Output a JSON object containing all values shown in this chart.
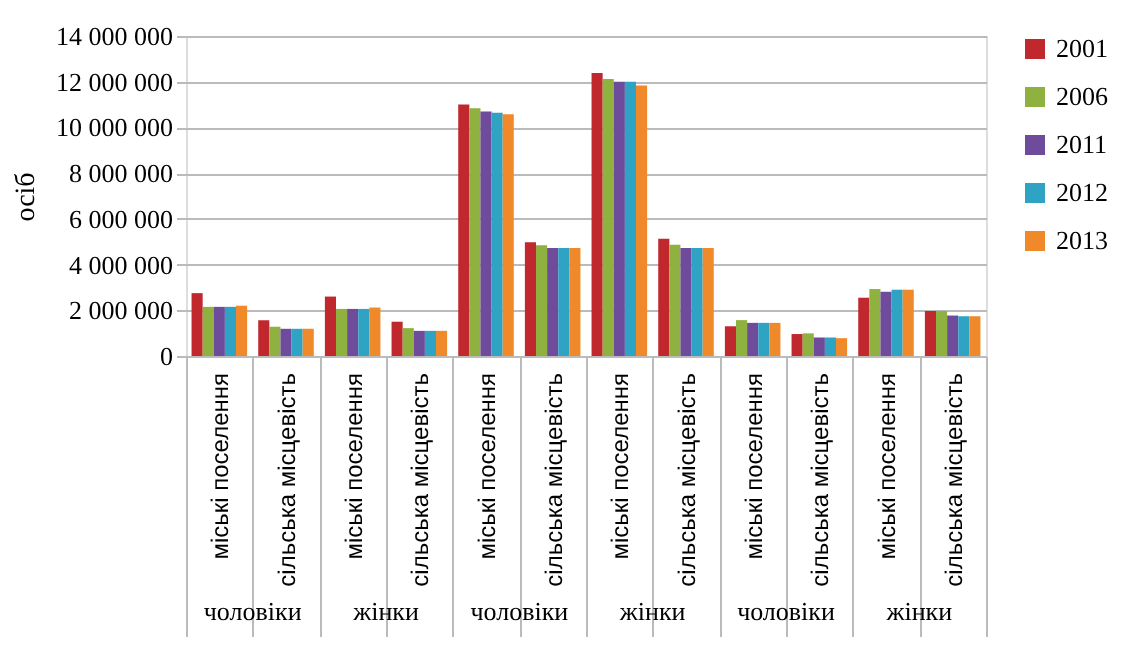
{
  "chart_data": {
    "type": "bar",
    "ylabel": "осіб",
    "categories": [
      "міські поселення",
      "сільська місцевість",
      "міські поселення",
      "сільська місцевість",
      "міські поселення",
      "сільська місцевість",
      "міські поселення",
      "сільська місцевість",
      "міські поселення",
      "сільська місцевість",
      "міські поселення",
      "сільська місцевість"
    ],
    "annotations": [
      "чоловіки",
      "жінки",
      "чоловіки",
      "жінки",
      "чоловіки",
      "жінки"
    ],
    "series": [
      {
        "name": "2001",
        "color": "#c0282d",
        "values": [
          2750000,
          1560000,
          2600000,
          1500000,
          11000000,
          4980000,
          12380000,
          5130000,
          1300000,
          960000,
          2550000,
          1970000
        ]
      },
      {
        "name": "2006",
        "color": "#8fb13f",
        "values": [
          2150000,
          1280000,
          2060000,
          1220000,
          10840000,
          4840000,
          12120000,
          4870000,
          1570000,
          990000,
          2930000,
          1970000
        ]
      },
      {
        "name": "2011",
        "color": "#6e4b9b",
        "values": [
          2150000,
          1190000,
          2060000,
          1100000,
          10700000,
          4720000,
          12000000,
          4720000,
          1450000,
          810000,
          2810000,
          1770000
        ]
      },
      {
        "name": "2012",
        "color": "#2fa3c4",
        "values": [
          2150000,
          1190000,
          2060000,
          1100000,
          10640000,
          4720000,
          12000000,
          4720000,
          1450000,
          810000,
          2900000,
          1740000
        ]
      },
      {
        "name": "2013",
        "color": "#f0892a",
        "values": [
          2200000,
          1190000,
          2120000,
          1100000,
          10580000,
          4720000,
          11830000,
          4720000,
          1450000,
          780000,
          2900000,
          1740000
        ]
      }
    ],
    "ylim": [
      0,
      14000000
    ],
    "yticks": [
      {
        "value": 0,
        "label": "0"
      },
      {
        "value": 2000000,
        "label": "2 000 000"
      },
      {
        "value": 4000000,
        "label": "4 000 000"
      },
      {
        "value": 6000000,
        "label": "6 000 000"
      },
      {
        "value": 8000000,
        "label": "8 000 000"
      },
      {
        "value": 10000000,
        "label": "10 000 000"
      },
      {
        "value": 12000000,
        "label": "12 000 000"
      },
      {
        "value": 14000000,
        "label": "14 000 000"
      }
    ],
    "grid": "y",
    "legend": "right"
  }
}
